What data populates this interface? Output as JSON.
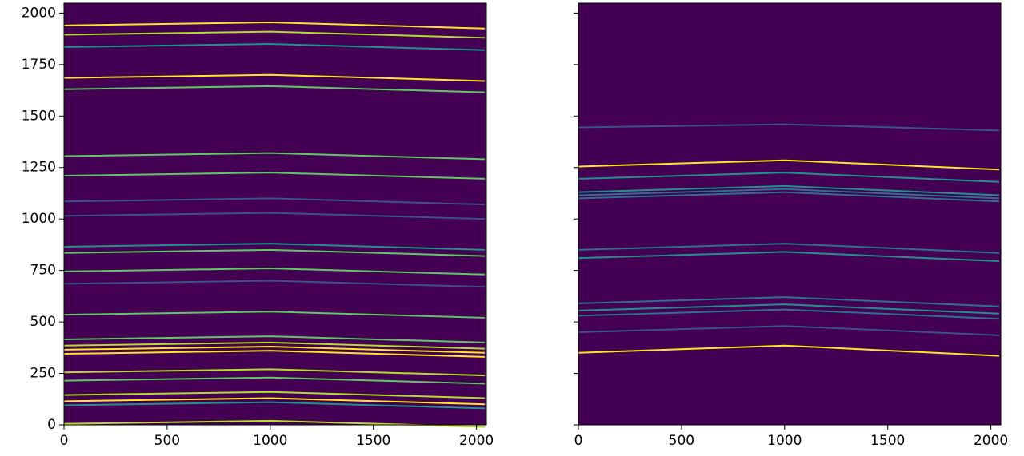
{
  "chart_data": [
    {
      "type": "image",
      "background": "#440154",
      "xlim": [
        0,
        2048
      ],
      "ylim": [
        0,
        2048
      ],
      "xticks": [
        0,
        500,
        1000,
        1500,
        2000
      ],
      "yticks": [
        0,
        250,
        500,
        750,
        1000,
        1250,
        1500,
        1750,
        2000
      ],
      "ytick_labels": true,
      "x": [
        0,
        1000,
        2040
      ],
      "series": [
        {
          "color": "#fde725",
          "values": [
            1940,
            1955,
            1925
          ]
        },
        {
          "color": "#b5de2b",
          "values": [
            1895,
            1910,
            1880
          ]
        },
        {
          "color": "#21918c",
          "values": [
            1835,
            1850,
            1820
          ]
        },
        {
          "color": "#fde725",
          "values": [
            1685,
            1700,
            1670
          ]
        },
        {
          "color": "#5ec962",
          "values": [
            1630,
            1645,
            1615
          ]
        },
        {
          "color": "#5ec962",
          "values": [
            1305,
            1320,
            1290
          ]
        },
        {
          "color": "#5ec962",
          "values": [
            1210,
            1225,
            1195
          ]
        },
        {
          "color": "#3b528b",
          "values": [
            1085,
            1100,
            1070
          ]
        },
        {
          "color": "#3b528b",
          "values": [
            1015,
            1030,
            1000
          ]
        },
        {
          "color": "#21918c",
          "values": [
            865,
            880,
            850
          ]
        },
        {
          "color": "#5ec962",
          "values": [
            835,
            850,
            820
          ]
        },
        {
          "color": "#5ec962",
          "values": [
            745,
            760,
            730
          ]
        },
        {
          "color": "#3b528b",
          "values": [
            685,
            700,
            670
          ]
        },
        {
          "color": "#5ec962",
          "values": [
            535,
            550,
            520
          ]
        },
        {
          "color": "#5ec962",
          "values": [
            415,
            430,
            400
          ]
        },
        {
          "color": "#b5de2b",
          "values": [
            385,
            400,
            370
          ]
        },
        {
          "color": "#fde725",
          "values": [
            365,
            380,
            350
          ]
        },
        {
          "color": "#fde725",
          "values": [
            345,
            360,
            330
          ]
        },
        {
          "color": "#b5de2b",
          "values": [
            255,
            270,
            240
          ]
        },
        {
          "color": "#5ec962",
          "values": [
            215,
            230,
            200
          ]
        },
        {
          "color": "#b5de2b",
          "values": [
            145,
            160,
            130
          ]
        },
        {
          "color": "#fde725",
          "values": [
            115,
            130,
            100
          ]
        },
        {
          "color": "#21918c",
          "values": [
            95,
            110,
            80
          ]
        },
        {
          "color": "#b5de2b",
          "values": [
            5,
            20,
            -10
          ]
        }
      ]
    },
    {
      "type": "image",
      "background": "#440154",
      "xlim": [
        0,
        2048
      ],
      "ylim": [
        0,
        2048
      ],
      "xticks": [
        0,
        500,
        1000,
        1500,
        2000
      ],
      "yticks": [
        0,
        250,
        500,
        750,
        1000,
        1250,
        1500,
        1750,
        2000
      ],
      "ytick_labels": false,
      "x": [
        0,
        1000,
        2040
      ],
      "series": [
        {
          "color": "#3b528b",
          "values": [
            1445,
            1460,
            1430
          ]
        },
        {
          "color": "#fde725",
          "values": [
            1255,
            1285,
            1240
          ]
        },
        {
          "color": "#21918c",
          "values": [
            1195,
            1225,
            1180
          ]
        },
        {
          "color": "#21918c",
          "values": [
            1130,
            1160,
            1115
          ]
        },
        {
          "color": "#2c728e",
          "values": [
            1115,
            1145,
            1100
          ]
        },
        {
          "color": "#2c728e",
          "values": [
            1100,
            1130,
            1085
          ]
        },
        {
          "color": "#2c728e",
          "values": [
            850,
            880,
            835
          ]
        },
        {
          "color": "#21918c",
          "values": [
            810,
            840,
            795
          ]
        },
        {
          "color": "#2c728e",
          "values": [
            590,
            620,
            575
          ]
        },
        {
          "color": "#21918c",
          "values": [
            555,
            585,
            540
          ]
        },
        {
          "color": "#2c728e",
          "values": [
            530,
            560,
            515
          ]
        },
        {
          "color": "#3b528b",
          "values": [
            450,
            480,
            435
          ]
        },
        {
          "color": "#fde725",
          "values": [
            350,
            385,
            335
          ]
        }
      ]
    }
  ]
}
